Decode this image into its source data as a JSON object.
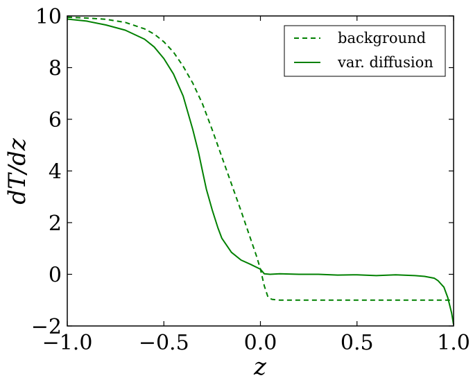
{
  "chart_data": {
    "type": "line",
    "xlabel": "z",
    "ylabel": "dT/dz",
    "xlim": [
      -1.0,
      1.0
    ],
    "ylim": [
      -2,
      10
    ],
    "xticks": [
      -1.0,
      -0.5,
      0.0,
      0.5,
      1.0
    ],
    "xtick_labels": [
      "−1.0",
      "−0.5",
      "0.0",
      "0.5",
      "1.0"
    ],
    "yticks": [
      -2,
      0,
      2,
      4,
      6,
      8,
      10
    ],
    "ytick_labels": [
      "−2",
      "0",
      "2",
      "4",
      "6",
      "8",
      "10"
    ],
    "grid": false,
    "legend_position": "top-right",
    "series": [
      {
        "name": "background",
        "color": "#008000",
        "style": "dashed",
        "x": [
          -1.0,
          -0.9,
          -0.8,
          -0.7,
          -0.6,
          -0.55,
          -0.5,
          -0.45,
          -0.4,
          -0.35,
          -0.3,
          -0.25,
          -0.2,
          -0.15,
          -0.1,
          -0.05,
          -0.02,
          0.0,
          0.02,
          0.04,
          0.06,
          0.1,
          0.2,
          0.5,
          0.8,
          1.0
        ],
        "y": [
          9.95,
          9.92,
          9.87,
          9.75,
          9.5,
          9.3,
          9.0,
          8.6,
          8.05,
          7.4,
          6.6,
          5.6,
          4.55,
          3.5,
          2.45,
          1.35,
          0.7,
          0.2,
          -0.45,
          -0.9,
          -0.97,
          -1.0,
          -1.0,
          -1.0,
          -1.0,
          -1.0
        ]
      },
      {
        "name": "var. diffusion",
        "color": "#008000",
        "style": "solid",
        "x": [
          -1.0,
          -0.9,
          -0.8,
          -0.7,
          -0.6,
          -0.55,
          -0.5,
          -0.45,
          -0.4,
          -0.35,
          -0.32,
          -0.3,
          -0.28,
          -0.25,
          -0.22,
          -0.2,
          -0.15,
          -0.1,
          -0.05,
          0.0,
          0.02,
          0.05,
          0.1,
          0.2,
          0.3,
          0.4,
          0.5,
          0.6,
          0.7,
          0.8,
          0.85,
          0.9,
          0.92,
          0.95,
          0.97,
          0.99,
          1.0
        ],
        "y": [
          9.88,
          9.8,
          9.65,
          9.45,
          9.1,
          8.8,
          8.35,
          7.75,
          6.9,
          5.6,
          4.7,
          4.0,
          3.3,
          2.5,
          1.8,
          1.4,
          0.85,
          0.55,
          0.38,
          0.2,
          0.02,
          0.0,
          0.02,
          0.0,
          0.0,
          -0.03,
          -0.02,
          -0.05,
          -0.02,
          -0.05,
          -0.08,
          -0.15,
          -0.25,
          -0.5,
          -0.9,
          -1.5,
          -1.95
        ]
      }
    ]
  }
}
